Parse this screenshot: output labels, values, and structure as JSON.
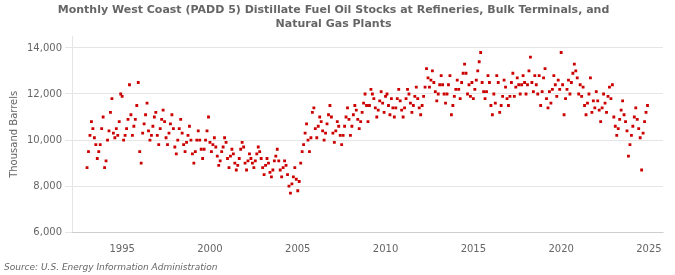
{
  "chart_data": {
    "type": "scatter",
    "title": "Monthly West Coast (PADD 5) Distillate Fuel Oil Stocks at Refineries, Bulk Terminals, and\nNatural Gas Plants",
    "y_label": "Thousand Barrels",
    "annotations": [
      "Source: U.S. Energy Information Administration"
    ],
    "color": "#CC0000",
    "marker": "square",
    "grid": "y",
    "xlim": [
      1992.2,
      2025.8
    ],
    "ylim": [
      6000,
      14500
    ],
    "xticks": [
      1995,
      2000,
      2005,
      2010,
      2015,
      2020,
      2025
    ],
    "yticks": [
      {
        "value": 6000,
        "label": "6,000"
      },
      {
        "value": 8000,
        "label": "8,000"
      },
      {
        "value": 10000,
        "label": "10,000"
      },
      {
        "value": 12000,
        "label": "12,000"
      },
      {
        "value": 14000,
        "label": "14,000"
      }
    ],
    "x": [
      1993.0,
      1993.083,
      1993.167,
      1993.25,
      1993.333,
      1993.417,
      1993.5,
      1993.583,
      1993.667,
      1993.75,
      1993.833,
      1993.917,
      1994.0,
      1994.083,
      1994.167,
      1994.25,
      1994.333,
      1994.417,
      1994.5,
      1994.583,
      1994.667,
      1994.75,
      1994.833,
      1994.917,
      1995.0,
      1995.083,
      1995.167,
      1995.25,
      1995.333,
      1995.417,
      1995.5,
      1995.583,
      1995.667,
      1995.75,
      1995.833,
      1995.917,
      1996.0,
      1996.083,
      1996.167,
      1996.25,
      1996.333,
      1996.417,
      1996.5,
      1996.583,
      1996.667,
      1996.75,
      1996.833,
      1996.917,
      1997.0,
      1997.083,
      1997.167,
      1997.25,
      1997.333,
      1997.417,
      1997.5,
      1997.583,
      1997.667,
      1997.75,
      1997.833,
      1997.917,
      1998.0,
      1998.083,
      1998.167,
      1998.25,
      1998.333,
      1998.417,
      1998.5,
      1998.583,
      1998.667,
      1998.75,
      1998.833,
      1998.917,
      1999.0,
      1999.083,
      1999.167,
      1999.25,
      1999.333,
      1999.417,
      1999.5,
      1999.583,
      1999.667,
      1999.75,
      1999.833,
      1999.917,
      2000.0,
      2000.083,
      2000.167,
      2000.25,
      2000.333,
      2000.417,
      2000.5,
      2000.583,
      2000.667,
      2000.75,
      2000.833,
      2000.917,
      2001.0,
      2001.083,
      2001.167,
      2001.25,
      2001.333,
      2001.417,
      2001.5,
      2001.583,
      2001.667,
      2001.75,
      2001.833,
      2001.917,
      2002.0,
      2002.083,
      2002.167,
      2002.25,
      2002.333,
      2002.417,
      2002.5,
      2002.583,
      2002.667,
      2002.75,
      2002.833,
      2002.917,
      2003.0,
      2003.083,
      2003.167,
      2003.25,
      2003.333,
      2003.417,
      2003.5,
      2003.583,
      2003.667,
      2003.75,
      2003.833,
      2003.917,
      2004.0,
      2004.083,
      2004.167,
      2004.25,
      2004.333,
      2004.417,
      2004.5,
      2004.583,
      2004.667,
      2004.75,
      2004.833,
      2004.917,
      2005.0,
      2005.083,
      2005.167,
      2005.25,
      2005.333,
      2005.417,
      2005.5,
      2005.583,
      2005.667,
      2005.75,
      2005.833,
      2005.917,
      2006.0,
      2006.083,
      2006.167,
      2006.25,
      2006.333,
      2006.417,
      2006.5,
      2006.583,
      2006.667,
      2006.75,
      2006.833,
      2006.917,
      2007.0,
      2007.083,
      2007.167,
      2007.25,
      2007.333,
      2007.417,
      2007.5,
      2007.583,
      2007.667,
      2007.75,
      2007.833,
      2007.917,
      2008.0,
      2008.083,
      2008.167,
      2008.25,
      2008.333,
      2008.417,
      2008.5,
      2008.583,
      2008.667,
      2008.75,
      2008.833,
      2008.917,
      2009.0,
      2009.083,
      2009.167,
      2009.25,
      2009.333,
      2009.417,
      2009.5,
      2009.583,
      2009.667,
      2009.75,
      2009.833,
      2009.917,
      2010.0,
      2010.083,
      2010.167,
      2010.25,
      2010.333,
      2010.417,
      2010.5,
      2010.583,
      2010.667,
      2010.75,
      2010.833,
      2010.917,
      2011.0,
      2011.083,
      2011.167,
      2011.25,
      2011.333,
      2011.417,
      2011.5,
      2011.583,
      2011.667,
      2011.75,
      2011.833,
      2011.917,
      2012.0,
      2012.083,
      2012.167,
      2012.25,
      2012.333,
      2012.417,
      2012.5,
      2012.583,
      2012.667,
      2012.75,
      2012.833,
      2012.917,
      2013.0,
      2013.083,
      2013.167,
      2013.25,
      2013.333,
      2013.417,
      2013.5,
      2013.583,
      2013.667,
      2013.75,
      2013.833,
      2013.917,
      2014.0,
      2014.083,
      2014.167,
      2014.25,
      2014.333,
      2014.417,
      2014.5,
      2014.583,
      2014.667,
      2014.75,
      2014.833,
      2014.917,
      2015.0,
      2015.083,
      2015.167,
      2015.25,
      2015.333,
      2015.417,
      2015.5,
      2015.583,
      2015.667,
      2015.75,
      2015.833,
      2015.917,
      2016.0,
      2016.083,
      2016.167,
      2016.25,
      2016.333,
      2016.417,
      2016.5,
      2016.583,
      2016.667,
      2016.75,
      2016.833,
      2016.917,
      2017.0,
      2017.083,
      2017.167,
      2017.25,
      2017.333,
      2017.417,
      2017.5,
      2017.583,
      2017.667,
      2017.75,
      2017.833,
      2017.917,
      2018.0,
      2018.083,
      2018.167,
      2018.25,
      2018.333,
      2018.417,
      2018.5,
      2018.583,
      2018.667,
      2018.75,
      2018.833,
      2018.917,
      2019.0,
      2019.083,
      2019.167,
      2019.25,
      2019.333,
      2019.417,
      2019.5,
      2019.583,
      2019.667,
      2019.75,
      2019.833,
      2019.917,
      2020.0,
      2020.083,
      2020.167,
      2020.25,
      2020.333,
      2020.417,
      2020.5,
      2020.583,
      2020.667,
      2020.75,
      2020.833,
      2020.917,
      2021.0,
      2021.083,
      2021.167,
      2021.25,
      2021.333,
      2021.417,
      2021.5,
      2021.583,
      2021.667,
      2021.75,
      2021.833,
      2021.917,
      2022.0,
      2022.083,
      2022.167,
      2022.25,
      2022.333,
      2022.417,
      2022.5,
      2022.583,
      2022.667,
      2022.75,
      2022.833,
      2022.917,
      2023.0,
      2023.083,
      2023.167,
      2023.25,
      2023.333,
      2023.417,
      2023.5,
      2023.583,
      2023.667,
      2023.75,
      2023.833,
      2023.917,
      2024.0,
      2024.083,
      2024.167,
      2024.25,
      2024.333,
      2024.417,
      2024.5,
      2024.583,
      2024.667,
      2024.75,
      2024.833,
      2024.917
    ],
    "values": [
      8800,
      9500,
      10200,
      10800,
      10500,
      10100,
      9800,
      9200,
      9500,
      9800,
      10500,
      11000,
      8800,
      9100,
      10000,
      10400,
      11200,
      11800,
      10300,
      10100,
      10500,
      10200,
      10800,
      12000,
      11900,
      10000,
      10200,
      10500,
      10900,
      12400,
      11100,
      10200,
      10600,
      10900,
      11500,
      12500,
      9500,
      9000,
      10300,
      10700,
      11100,
      11600,
      10400,
      10000,
      10200,
      10600,
      11000,
      11200,
      10200,
      9800,
      10500,
      10900,
      11300,
      10800,
      10100,
      9800,
      10300,
      10700,
      11100,
      10500,
      9700,
      9400,
      10000,
      10500,
      10900,
      10300,
      9800,
      9500,
      9900,
      10200,
      10600,
      10000,
      9400,
      9000,
      9500,
      10000,
      10400,
      10000,
      9600,
      9200,
      9600,
      10000,
      10400,
      11000,
      9900,
      9500,
      9800,
      10100,
      9700,
      9300,
      8900,
      9100,
      9500,
      9700,
      10100,
      9900,
      9200,
      8800,
      9300,
      9600,
      9400,
      9000,
      8700,
      8900,
      9200,
      9600,
      9900,
      9700,
      9000,
      8700,
      9100,
      9400,
      9200,
      9000,
      8800,
      9100,
      9400,
      9700,
      9500,
      9200,
      8800,
      8500,
      8900,
      9200,
      9000,
      8600,
      8400,
      8700,
      9100,
      9300,
      9600,
      9100,
      8700,
      8400,
      8800,
      9100,
      8900,
      8500,
      8000,
      7700,
      8100,
      8400,
      8800,
      8300,
      7800,
      8200,
      9000,
      9500,
      9800,
      10300,
      10700,
      10000,
      9500,
      10100,
      11200,
      11400,
      10500,
      10100,
      10600,
      11000,
      10800,
      10400,
      10000,
      10300,
      10700,
      11100,
      11500,
      11000,
      10300,
      9900,
      10400,
      10800,
      10600,
      10200,
      9800,
      10200,
      10600,
      11000,
      11400,
      10900,
      10200,
      10600,
      11100,
      11500,
      11300,
      10900,
      10500,
      10800,
      11200,
      11600,
      12000,
      11500,
      10800,
      11500,
      12200,
      12000,
      11800,
      11400,
      11000,
      11300,
      11700,
      12100,
      11600,
      11200,
      11900,
      12000,
      11500,
      11100,
      11800,
      11400,
      11000,
      11400,
      11800,
      12200,
      11700,
      11300,
      11000,
      11400,
      11800,
      12200,
      12000,
      11600,
      11200,
      11500,
      11900,
      12300,
      11800,
      11400,
      11100,
      11500,
      11900,
      12300,
      13100,
      12700,
      12300,
      12600,
      13000,
      12500,
      12100,
      11700,
      12000,
      12400,
      12800,
      12400,
      12000,
      11600,
      12000,
      12400,
      12800,
      11100,
      11500,
      11900,
      12200,
      12600,
      12200,
      11800,
      12500,
      12900,
      13300,
      12900,
      12000,
      12400,
      11900,
      12500,
      11800,
      12200,
      12600,
      13000,
      13400,
      13800,
      12500,
      12100,
      11800,
      12100,
      12800,
      12500,
      11500,
      11100,
      12000,
      11600,
      12800,
      12500,
      11200,
      11500,
      11900,
      12600,
      12300,
      11800,
      11500,
      11900,
      12500,
      12900,
      11900,
      12300,
      12700,
      12400,
      12000,
      12400,
      12800,
      12500,
      12000,
      12400,
      13000,
      13600,
      12500,
      12100,
      12800,
      12400,
      12000,
      12800,
      11500,
      12100,
      12700,
      13100,
      11800,
      11400,
      12100,
      11600,
      12200,
      12800,
      12400,
      11900,
      12600,
      12200,
      13800,
      12400,
      11100,
      11800,
      12200,
      12600,
      12000,
      12500,
      12900,
      13300,
      13000,
      12700,
      12000,
      12400,
      11900,
      12300,
      11500,
      11100,
      11600,
      12000,
      12700,
      11200,
      11700,
      11400,
      12100,
      11700,
      11300,
      10800,
      11400,
      12000,
      11600,
      11200,
      11900,
      12300,
      11800,
      12400,
      11000,
      10600,
      10200,
      10500,
      10900,
      11300,
      11700,
      11100,
      10800,
      10400,
      9300,
      9800,
      10200,
      10600,
      11000,
      11400,
      10900,
      10500,
      10100,
      8700,
      10300,
      10800,
      11200,
      11500
    ]
  }
}
